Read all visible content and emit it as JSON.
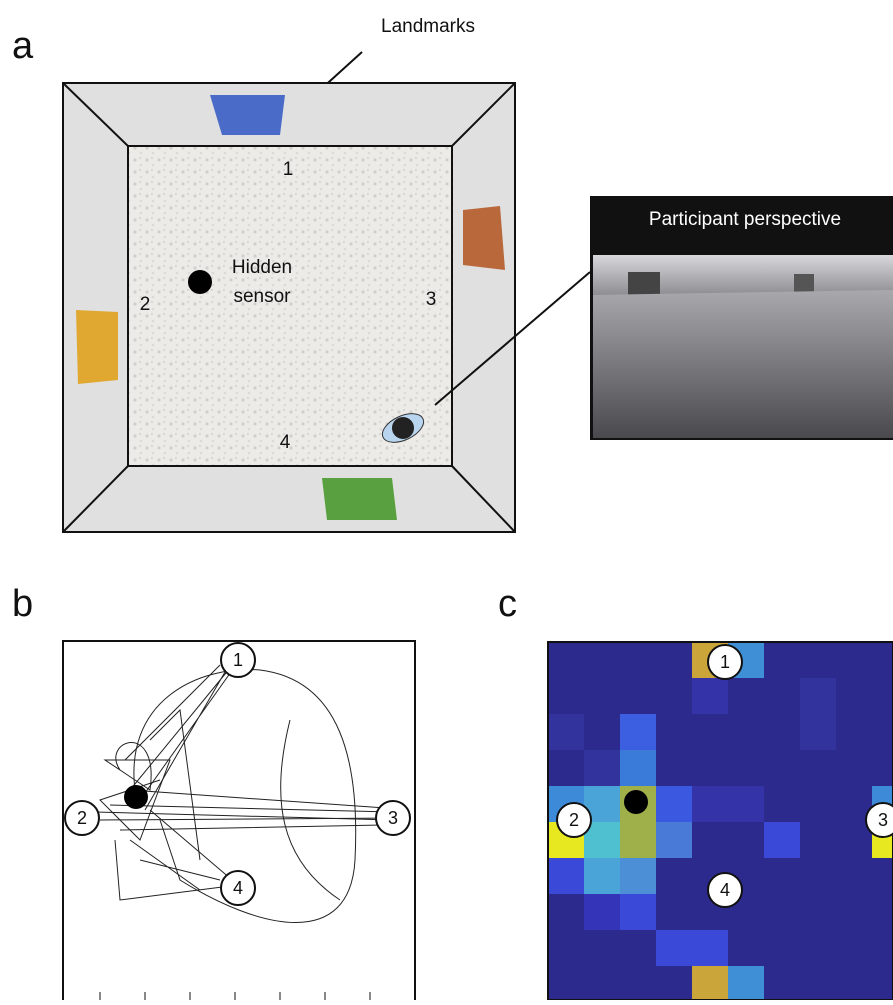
{
  "panels": [
    {
      "label": "a",
      "landmarks": "Landmarks",
      "walls": [
        "1",
        "2",
        "3",
        "4"
      ],
      "sensor": [
        "Hidden",
        "sensor"
      ],
      "perspective": "Participant perspective"
    },
    {
      "label": "b",
      "markers": [
        "1",
        "2",
        "3",
        "4"
      ]
    },
    {
      "label": "c",
      "markers": [
        "1",
        "2",
        "3",
        "4"
      ]
    }
  ]
}
